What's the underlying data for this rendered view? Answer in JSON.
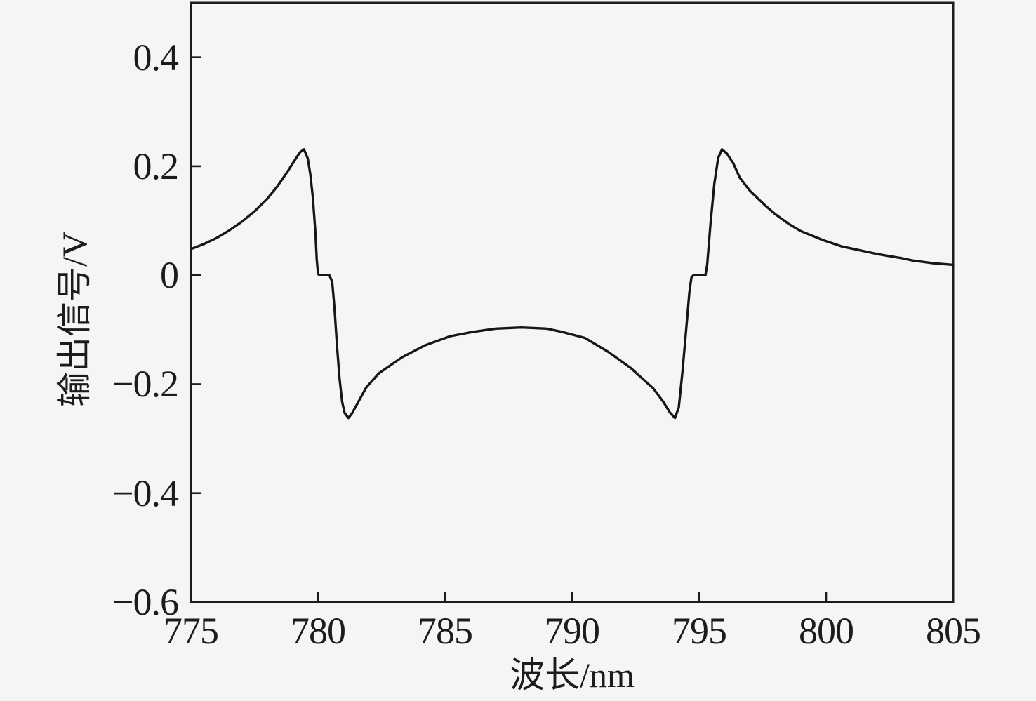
{
  "figure": {
    "background_color": "#f5f5f5",
    "box_color": "#1c1c1c",
    "tick_color": "#1c1c1c"
  },
  "chart_data": {
    "type": "line",
    "title": "",
    "xlabel": "波长/nm",
    "ylabel": "输出信号/V",
    "xlim": [
      775,
      805
    ],
    "ylim": [
      -0.6,
      0.5
    ],
    "x_ticks": [
      775,
      780,
      785,
      790,
      795,
      800,
      805
    ],
    "x_tick_labels": [
      "775",
      "780",
      "785",
      "790",
      "795",
      "800",
      "805"
    ],
    "y_ticks": [
      0.4,
      0.2,
      0,
      -0.2,
      -0.4,
      -0.6
    ],
    "y_tick_labels": [
      "0.4",
      "0.2",
      "0",
      "−0.2",
      "−0.4",
      "−0.6"
    ],
    "grid": false,
    "legend": "none",
    "line_color": "#161616",
    "line_width": 3.4,
    "series": [
      {
        "name": "输出信号",
        "points": [
          [
            775.0,
            0.048
          ],
          [
            775.5,
            0.057
          ],
          [
            776.0,
            0.068
          ],
          [
            776.5,
            0.082
          ],
          [
            777.0,
            0.098
          ],
          [
            777.5,
            0.117
          ],
          [
            778.0,
            0.14
          ],
          [
            778.4,
            0.163
          ],
          [
            778.8,
            0.19
          ],
          [
            779.1,
            0.212
          ],
          [
            779.3,
            0.226
          ],
          [
            779.45,
            0.231
          ],
          [
            779.6,
            0.214
          ],
          [
            779.7,
            0.185
          ],
          [
            779.8,
            0.142
          ],
          [
            779.9,
            0.078
          ],
          [
            779.95,
            0.03
          ],
          [
            780.0,
            0.003
          ],
          [
            780.05,
            0.0
          ],
          [
            780.45,
            0.0
          ],
          [
            780.56,
            -0.012
          ],
          [
            780.65,
            -0.06
          ],
          [
            780.75,
            -0.13
          ],
          [
            780.85,
            -0.19
          ],
          [
            780.95,
            -0.232
          ],
          [
            781.05,
            -0.253
          ],
          [
            781.2,
            -0.262
          ],
          [
            781.35,
            -0.253
          ],
          [
            781.5,
            -0.24
          ],
          [
            781.9,
            -0.206
          ],
          [
            782.4,
            -0.18
          ],
          [
            783.3,
            -0.151
          ],
          [
            784.2,
            -0.129
          ],
          [
            785.2,
            -0.112
          ],
          [
            786.1,
            -0.104
          ],
          [
            787.0,
            -0.098
          ],
          [
            788.0,
            -0.096
          ],
          [
            789.0,
            -0.098
          ],
          [
            789.6,
            -0.104
          ],
          [
            790.5,
            -0.115
          ],
          [
            791.4,
            -0.14
          ],
          [
            792.3,
            -0.17
          ],
          [
            793.2,
            -0.208
          ],
          [
            793.6,
            -0.233
          ],
          [
            793.85,
            -0.252
          ],
          [
            794.05,
            -0.262
          ],
          [
            794.2,
            -0.243
          ],
          [
            794.35,
            -0.175
          ],
          [
            794.5,
            -0.095
          ],
          [
            794.62,
            -0.03
          ],
          [
            794.7,
            -0.004
          ],
          [
            794.78,
            0.0
          ],
          [
            795.25,
            0.0
          ],
          [
            795.32,
            0.02
          ],
          [
            795.45,
            0.095
          ],
          [
            795.6,
            0.168
          ],
          [
            795.75,
            0.215
          ],
          [
            795.9,
            0.231
          ],
          [
            796.1,
            0.223
          ],
          [
            796.35,
            0.205
          ],
          [
            796.6,
            0.179
          ],
          [
            797.0,
            0.155
          ],
          [
            797.6,
            0.128
          ],
          [
            798.0,
            0.112
          ],
          [
            798.5,
            0.095
          ],
          [
            799.0,
            0.081
          ],
          [
            799.9,
            0.064
          ],
          [
            800.6,
            0.053
          ],
          [
            801.2,
            0.047
          ],
          [
            802.0,
            0.039
          ],
          [
            803.0,
            0.031
          ],
          [
            803.4,
            0.027
          ],
          [
            804.2,
            0.022
          ],
          [
            805.0,
            0.019
          ]
        ]
      }
    ]
  }
}
